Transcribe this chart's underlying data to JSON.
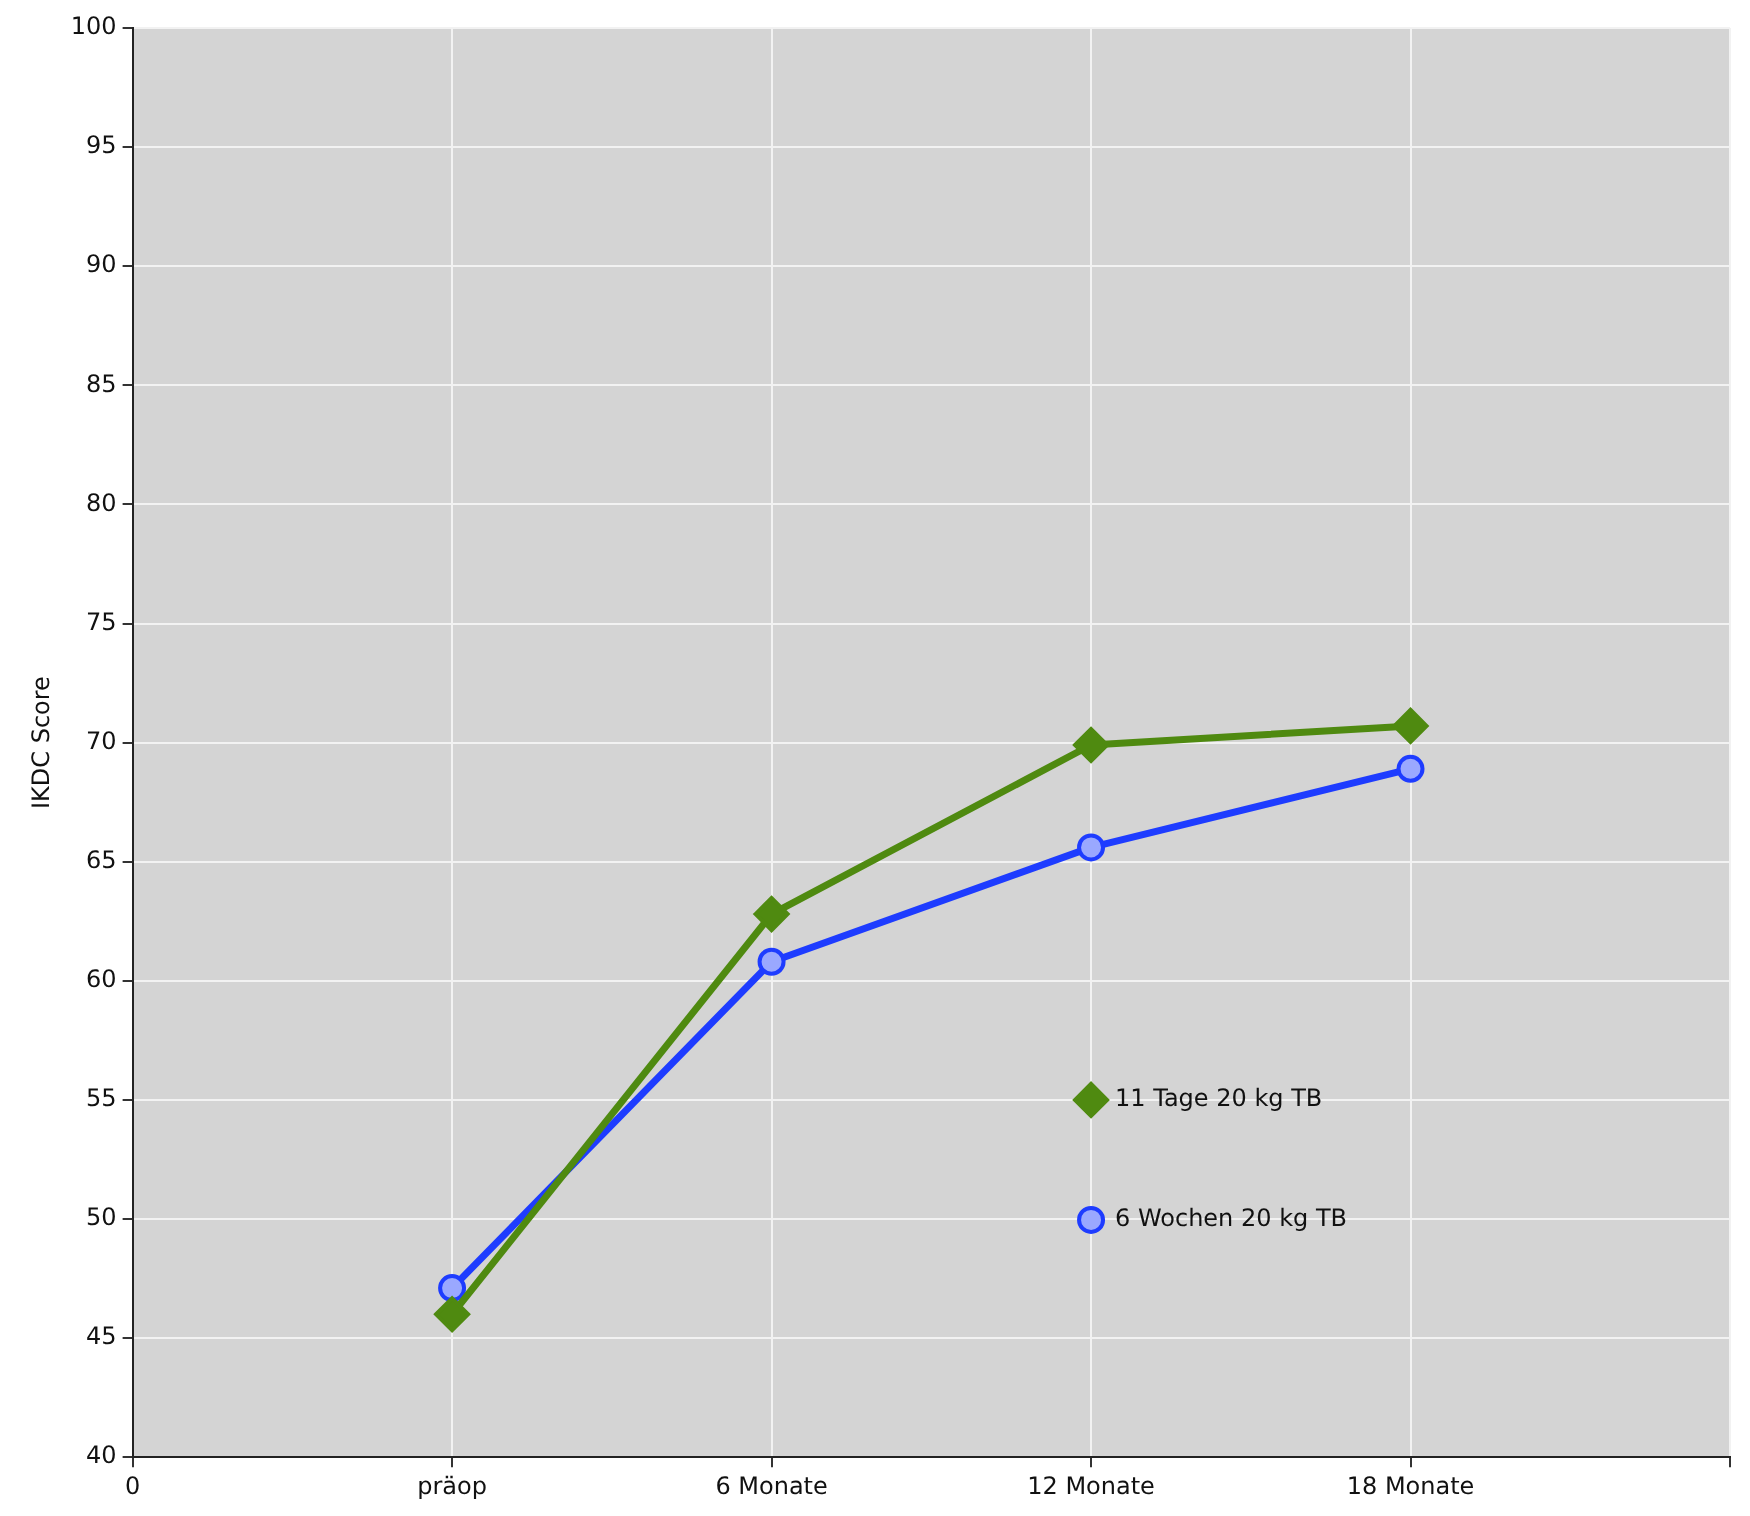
{
  "chart_data": {
    "type": "line",
    "ylabel": "IKDC Score",
    "categories": [
      "0",
      "präop",
      "6 Monate",
      "12 Monate",
      "18 Monate",
      null
    ],
    "ylim": [
      40,
      100
    ],
    "yticks": [
      40,
      45,
      50,
      55,
      60,
      65,
      70,
      75,
      80,
      85,
      90,
      95,
      100
    ],
    "grid": true,
    "legend": "bottom right",
    "line_style": "solid",
    "series": [
      {
        "name": "11 Tage 20 kg TB",
        "color": "#4f8a10",
        "marker": "diamond",
        "values": [
          null,
          46,
          62.8,
          69.9,
          70.7,
          null
        ]
      },
      {
        "name": "6 Wochen 20 kg TB",
        "color": "#1e3cff",
        "marker": "circle",
        "values": [
          null,
          47.1,
          60.8,
          65.6,
          68.9,
          null
        ]
      }
    ]
  }
}
